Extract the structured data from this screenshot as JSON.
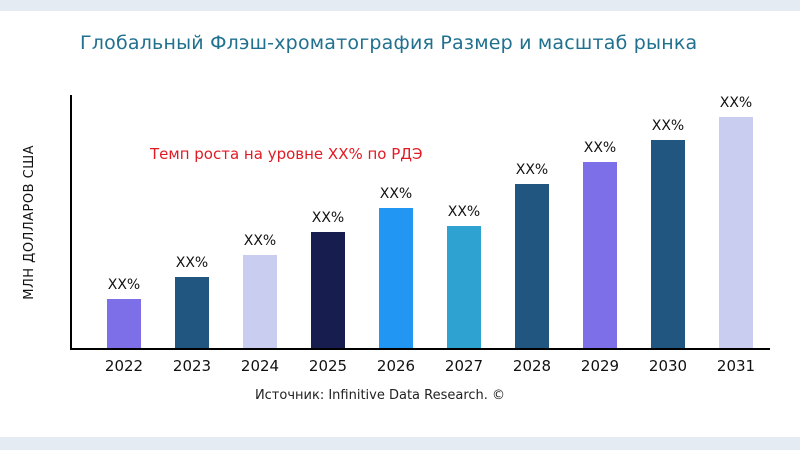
{
  "page": {
    "source_note": "Источник: Infinitive Data Research. ©"
  },
  "chart_data": {
    "type": "bar",
    "title": "Глобальный Флэш-хроматография Размер и масштаб рынка",
    "title_color": "#20708F",
    "xlabel": "",
    "ylabel": "МЛН ДОЛЛАРОВ США",
    "annotation": "Темп роста на уровне XX% по РДЭ",
    "annotation_color": "#E01B24",
    "categories": [
      "2022",
      "2023",
      "2024",
      "2025",
      "2026",
      "2027",
      "2028",
      "2029",
      "2030",
      "2031"
    ],
    "values": [
      48,
      70,
      92,
      115,
      138,
      121,
      162,
      184,
      206,
      230
    ],
    "bar_labels": [
      "XX%",
      "XX%",
      "XX%",
      "XX%",
      "XX%",
      "XX%",
      "XX%",
      "XX%",
      "XX%",
      "XX%"
    ],
    "bar_colors": [
      "#7C6FE8",
      "#20567F",
      "#C9CDF0",
      "#171D4E",
      "#2196F3",
      "#2EA3D2",
      "#20567F",
      "#7C6FE8",
      "#20567F",
      "#C9CDF0"
    ],
    "ylim": [
      0,
      250
    ],
    "grid": false,
    "legend": null
  }
}
